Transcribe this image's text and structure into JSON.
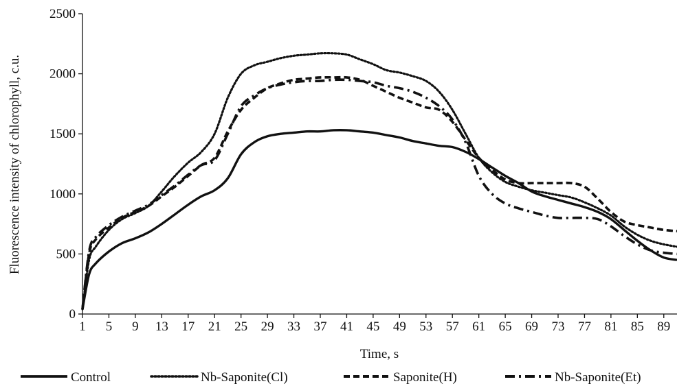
{
  "chart_data": {
    "type": "line",
    "title": "",
    "xlabel": "Time, s",
    "ylabel": "Fluorescence intensity of chlorophyll, c.u.",
    "xlim": [
      1,
      91
    ],
    "ylim": [
      0,
      2500
    ],
    "x_ticks": [
      1,
      5,
      9,
      13,
      17,
      21,
      25,
      29,
      33,
      37,
      41,
      45,
      49,
      53,
      57,
      61,
      65,
      69,
      73,
      77,
      81,
      85,
      89
    ],
    "y_ticks": [
      0,
      500,
      1000,
      1500,
      2000,
      2500
    ],
    "grid": false,
    "legend_position": "bottom",
    "x": [
      1,
      2,
      3,
      5,
      7,
      9,
      11,
      13,
      15,
      17,
      19,
      21,
      23,
      25,
      27,
      29,
      31,
      33,
      35,
      37,
      39,
      41,
      43,
      45,
      47,
      49,
      51,
      53,
      55,
      57,
      59,
      61,
      63,
      65,
      67,
      69,
      71,
      73,
      75,
      77,
      79,
      81,
      83,
      85,
      87,
      89,
      91
    ],
    "series": [
      {
        "name": "Control",
        "style": "solid",
        "color": "#111111",
        "values": [
          40,
          330,
          420,
          520,
          590,
          630,
          680,
          750,
          830,
          910,
          980,
          1030,
          1130,
          1330,
          1430,
          1480,
          1500,
          1510,
          1520,
          1520,
          1530,
          1530,
          1520,
          1510,
          1490,
          1470,
          1440,
          1420,
          1400,
          1390,
          1350,
          1290,
          1220,
          1150,
          1090,
          1020,
          980,
          950,
          920,
          890,
          850,
          790,
          700,
          610,
          530,
          470,
          450
        ]
      },
      {
        "name": "Nb-Saponite(Cl)",
        "style": "dotted",
        "color": "#111111",
        "values": [
          40,
          450,
          560,
          700,
          790,
          840,
          900,
          1020,
          1150,
          1260,
          1350,
          1500,
          1800,
          2000,
          2070,
          2100,
          2130,
          2150,
          2160,
          2170,
          2170,
          2160,
          2120,
          2080,
          2030,
          2010,
          1980,
          1940,
          1850,
          1700,
          1500,
          1300,
          1180,
          1100,
          1060,
          1030,
          1010,
          990,
          970,
          930,
          880,
          820,
          730,
          660,
          610,
          580,
          560
        ]
      },
      {
        "name": "Saponite(H)",
        "style": "dashed",
        "color": "#111111",
        "values": [
          40,
          500,
          620,
          720,
          800,
          850,
          900,
          980,
          1060,
          1150,
          1240,
          1300,
          1520,
          1700,
          1800,
          1880,
          1920,
          1950,
          1960,
          1970,
          1970,
          1970,
          1950,
          1900,
          1850,
          1800,
          1760,
          1720,
          1700,
          1600,
          1450,
          1300,
          1200,
          1120,
          1090,
          1090,
          1090,
          1090,
          1090,
          1060,
          960,
          850,
          770,
          740,
          720,
          700,
          690
        ]
      },
      {
        "name": "Nb-Saponite(Et)",
        "style": "dashdot",
        "color": "#111111",
        "values": [
          40,
          520,
          640,
          740,
          810,
          860,
          910,
          990,
          1070,
          1160,
          1240,
          1280,
          1500,
          1730,
          1820,
          1880,
          1910,
          1930,
          1940,
          1940,
          1950,
          1950,
          1940,
          1930,
          1900,
          1880,
          1850,
          1800,
          1730,
          1620,
          1430,
          1150,
          1000,
          920,
          880,
          850,
          820,
          800,
          800,
          800,
          790,
          730,
          650,
          580,
          530,
          510,
          500
        ]
      }
    ]
  }
}
